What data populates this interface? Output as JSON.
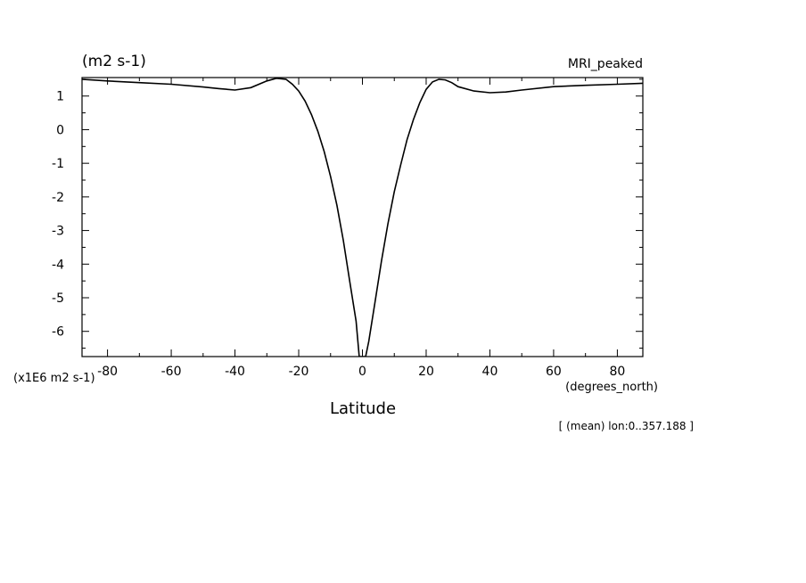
{
  "chart_data": {
    "type": "line",
    "title": "(m2 s-1)",
    "subtitle": "MRI_peaked",
    "xlabel": "Latitude",
    "xunits": "(degrees_north)",
    "yunits": "(x1E6 m2 s-1)",
    "footnote": "[ (mean) lon:0..357.188 ]",
    "xlim": [
      -88,
      88
    ],
    "ylim": [
      -6.75,
      1.55
    ],
    "xticks": [
      -80,
      -60,
      -40,
      -20,
      0,
      20,
      40,
      60,
      80
    ],
    "xtick_labels": [
      "-80",
      "-60",
      "-40",
      "-20",
      "0",
      "20",
      "40",
      "60",
      "80"
    ],
    "yticks": [
      1,
      0,
      -1,
      -2,
      -3,
      -4,
      -5,
      -6
    ],
    "ytick_labels": [
      "1",
      "0",
      "-1",
      "-2",
      "-3",
      "-4",
      "-5",
      "-6"
    ],
    "grid": false,
    "series": [
      {
        "x": [
          -88,
          -80,
          -70,
          -60,
          -50,
          -45,
          -40,
          -35,
          -30,
          -27,
          -24,
          -22,
          -20,
          -18,
          -16,
          -14,
          -12,
          -10,
          -8,
          -6,
          -4,
          -2,
          -1,
          1,
          2,
          4,
          6,
          8,
          10,
          12,
          14,
          16,
          18,
          20,
          22,
          24,
          26,
          28,
          30,
          35,
          40,
          45,
          50,
          60,
          70,
          80,
          88
        ],
        "y": [
          1.5,
          1.45,
          1.4,
          1.35,
          1.27,
          1.22,
          1.18,
          1.25,
          1.45,
          1.53,
          1.5,
          1.35,
          1.15,
          0.85,
          0.45,
          -0.05,
          -0.65,
          -1.4,
          -2.25,
          -3.3,
          -4.5,
          -5.7,
          -6.75,
          -6.75,
          -6.3,
          -5.1,
          -3.9,
          -2.8,
          -1.85,
          -1.05,
          -0.3,
          0.3,
          0.8,
          1.2,
          1.42,
          1.5,
          1.48,
          1.4,
          1.28,
          1.15,
          1.1,
          1.12,
          1.18,
          1.28,
          1.32,
          1.35,
          1.38
        ]
      }
    ]
  }
}
